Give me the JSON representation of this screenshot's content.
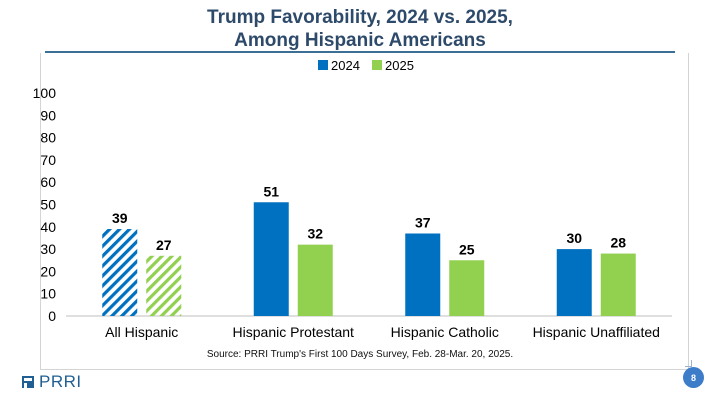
{
  "slide": {
    "title_line1": "Trump Favorability, 2024 vs. 2025,",
    "title_line2": "Among Hispanic Americans",
    "source": "Source: PRRI Trump's First 100 Days Survey, Feb. 28-Mar. 20, 2025.",
    "logo_text": "PRRI",
    "page_number": "8"
  },
  "colors": {
    "series_2024": "#0070c0",
    "series_2025": "#92d050",
    "title": "#2e4a6b"
  },
  "chart_data": {
    "type": "bar",
    "categories": [
      "All Hispanic",
      "Hispanic Protestant",
      "Hispanic Catholic",
      "Hispanic Unaffiliated"
    ],
    "series": [
      {
        "name": "2024",
        "values": [
          39,
          51,
          37,
          30
        ],
        "hatched_first": true
      },
      {
        "name": "2025",
        "values": [
          27,
          32,
          25,
          28
        ],
        "hatched_first": true
      }
    ],
    "ylim": [
      0,
      100
    ],
    "yticks": [
      0,
      10,
      20,
      30,
      40,
      50,
      60,
      70,
      80,
      90,
      100
    ],
    "legend_position": "top-center",
    "grid": false,
    "title": "",
    "xlabel": "",
    "ylabel": ""
  }
}
